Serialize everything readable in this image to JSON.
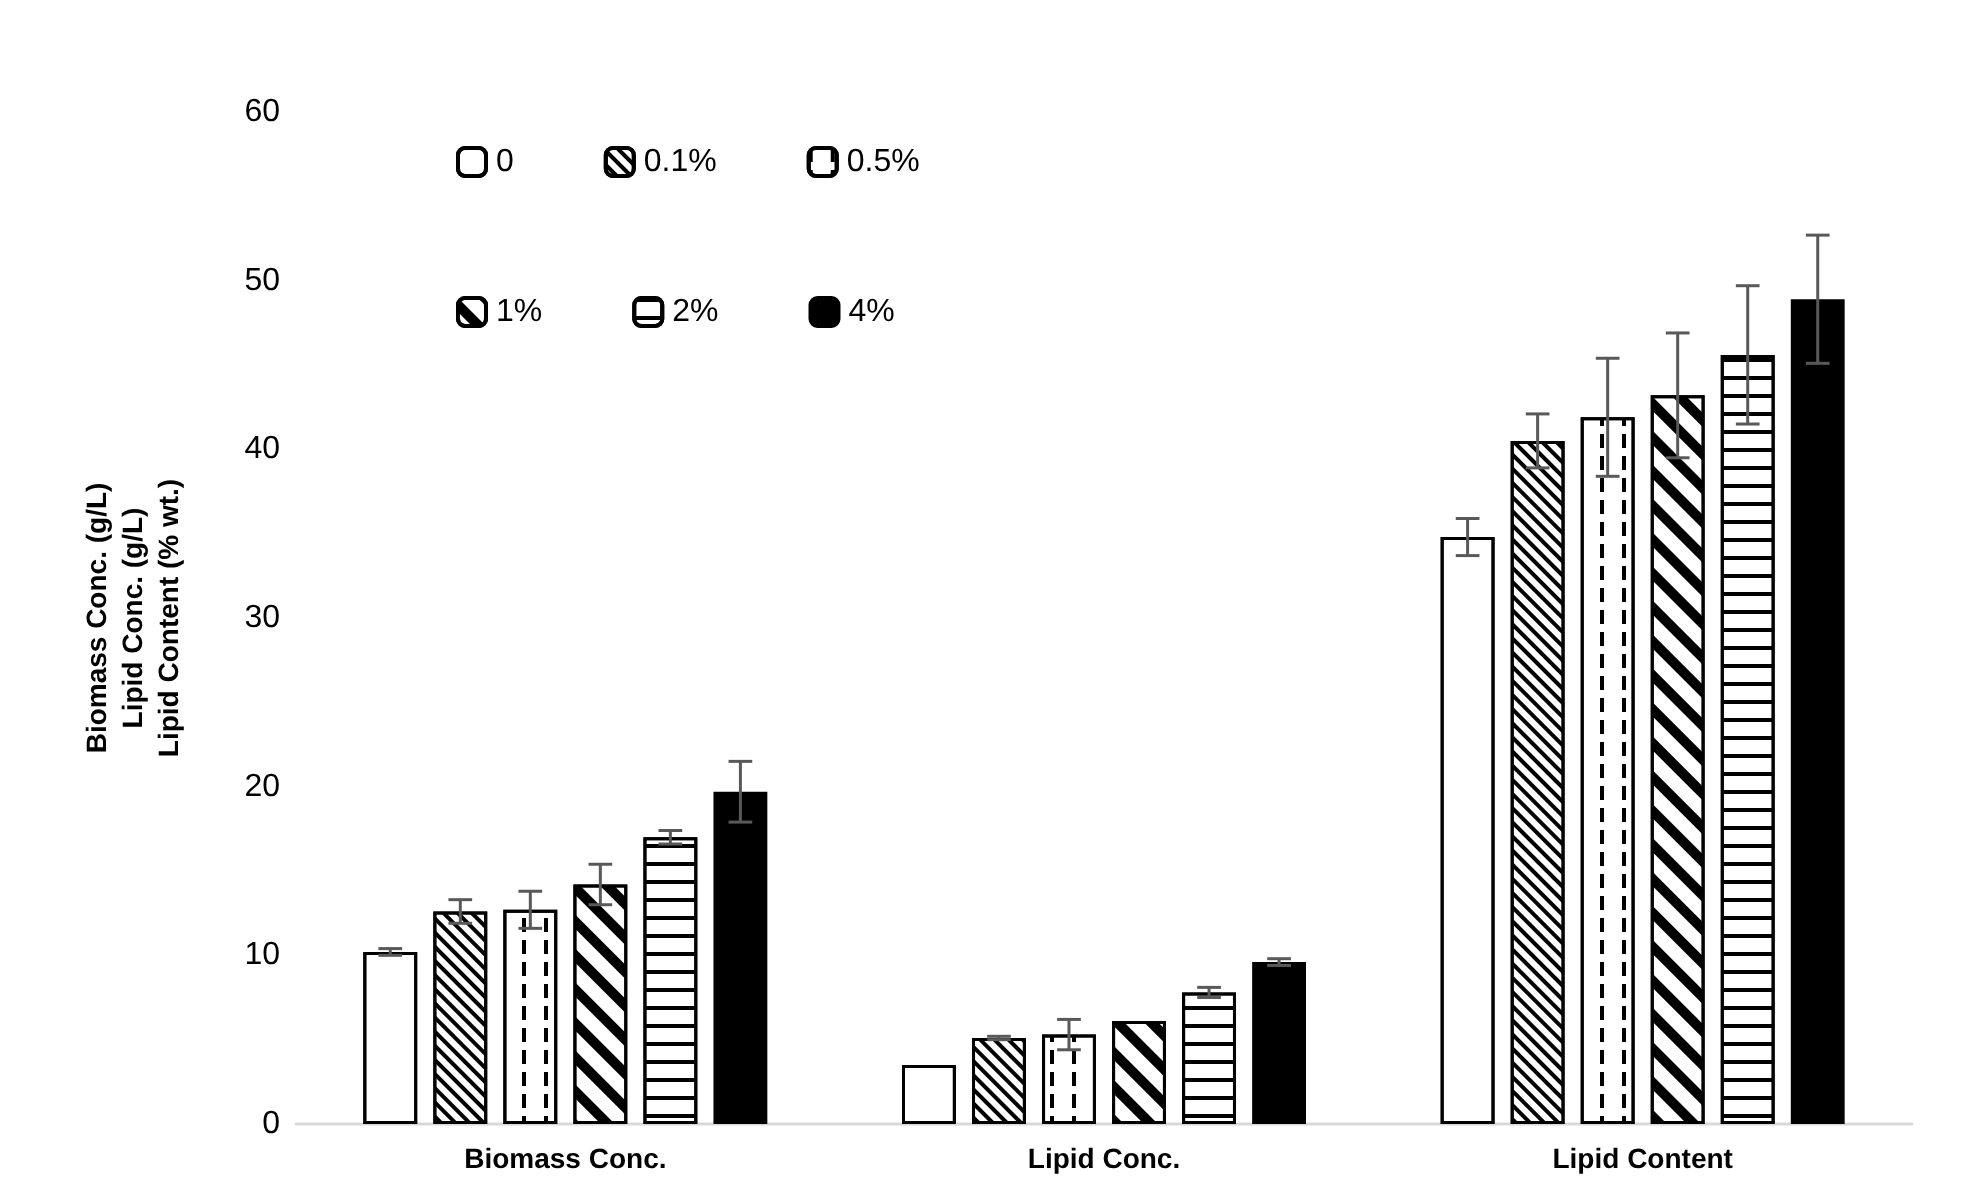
{
  "chart_data": {
    "type": "bar",
    "ylabel": "Biomass Conc. (g/L)\nLipid Conc. (g/L)\nLipid Content (% wt.)",
    "categories": [
      "Biomass Conc.",
      "Lipid Conc.",
      "Lipid Content"
    ],
    "series": [
      {
        "name": "0",
        "color": "#000000",
        "values": [
          10.2,
          3.5,
          34.8
        ],
        "errors": [
          0.2,
          null,
          1.1
        ]
      },
      {
        "name": "0.1%",
        "color": "#000000",
        "values": [
          12.6,
          5.1,
          40.5
        ],
        "errors": [
          0.7,
          0.1,
          1.6
        ]
      },
      {
        "name": "0.5%",
        "color": "#000000",
        "values": [
          12.7,
          5.3,
          41.9
        ],
        "errors": [
          1.1,
          0.9,
          3.5
        ]
      },
      {
        "name": "1%",
        "color": "#000000",
        "values": [
          14.2,
          6.1,
          43.2
        ],
        "errors": [
          1.2,
          null,
          3.7
        ]
      },
      {
        "name": "2%",
        "color": "#000000",
        "values": [
          17.0,
          7.8,
          45.6
        ],
        "errors": [
          0.4,
          0.3,
          4.1
        ]
      },
      {
        "name": "4%",
        "color": "#000000",
        "values": [
          19.7,
          9.6,
          48.9
        ],
        "errors": [
          1.8,
          0.2,
          3.8
        ]
      }
    ],
    "ylim": [
      0,
      60
    ],
    "yticks": [
      0,
      10,
      20,
      30,
      40,
      50,
      60
    ],
    "grid": false,
    "legend": "top left"
  }
}
